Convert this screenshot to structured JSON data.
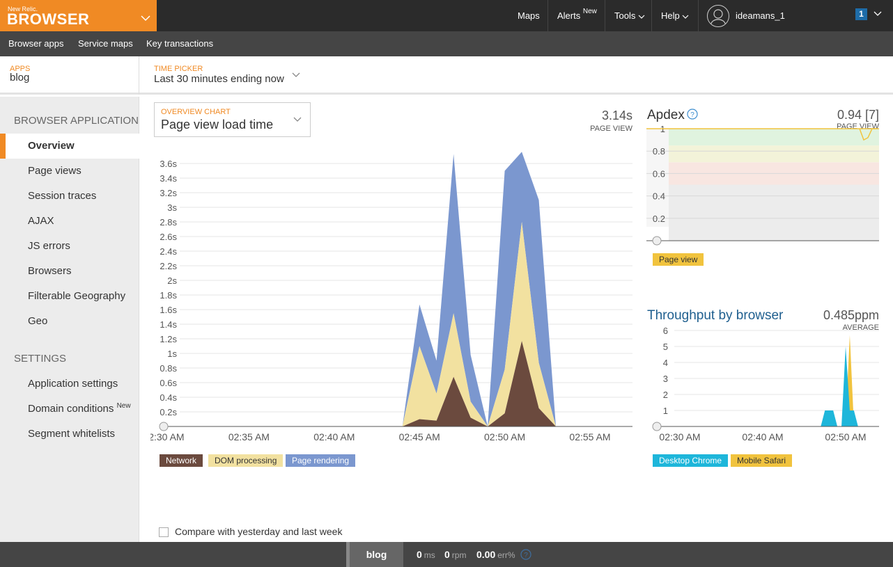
{
  "brand": {
    "small": "New Relic.",
    "name": "BROWSER"
  },
  "topnav": {
    "maps": "Maps",
    "alerts": "Alerts",
    "alerts_badge": "New",
    "tools": "Tools",
    "help": "Help",
    "username": "ideamans_1",
    "account_number": "1"
  },
  "subnav": [
    "Browser apps",
    "Service maps",
    "Key transactions"
  ],
  "context": {
    "apps_label": "APPS",
    "apps_value": "blog",
    "timepicker_label": "TIME PICKER",
    "timepicker_value": "Last 30 minutes ending now"
  },
  "sidebar": {
    "section1": "BROWSER APPLICATION",
    "items1": [
      "Overview",
      "Page views",
      "Session traces",
      "AJAX",
      "JS errors",
      "Browsers",
      "Filterable Geography",
      "Geo"
    ],
    "section2": "SETTINGS",
    "items2": [
      "Application settings",
      "Domain conditions",
      "Segment whitelists"
    ],
    "domain_badge": "New"
  },
  "overview": {
    "select_label": "OVERVIEW CHART",
    "select_value": "Page view load time",
    "stat_value": "3.14s",
    "stat_label": "PAGE VIEW"
  },
  "apdex": {
    "title": "Apdex",
    "stat_value": "0.94 [7]",
    "stat_label": "PAGE VIEW",
    "legend": "Page view"
  },
  "throughput": {
    "title": "Throughput by browser",
    "stat_value": "0.485ppm",
    "stat_label": "AVERAGE"
  },
  "compare_label": "Compare with yesterday and last week",
  "bottombar": {
    "app": "blog",
    "ms_value": "0",
    "ms_unit": "ms",
    "rpm_value": "0",
    "rpm_unit": "rpm",
    "err_value": "0.00",
    "err_unit": "err%"
  },
  "colors": {
    "brand": "#f08a24",
    "network": "#6b4a3e",
    "dom": "#f2e1a0",
    "render": "#7b97cf",
    "chrome": "#1eb6da",
    "safari": "#f1c33e"
  },
  "chart_data": [
    {
      "type": "area",
      "stacked": true,
      "x": [
        "02:44",
        "02:45",
        "02:46",
        "02:47",
        "02:48",
        "02:49",
        "02:50",
        "02:51",
        "02:52",
        "02:53"
      ],
      "series": [
        {
          "name": "Network",
          "values": [
            0,
            0.1,
            0.08,
            0.68,
            0.12,
            0,
            0.18,
            1.17,
            0.25,
            0
          ]
        },
        {
          "name": "DOM processing",
          "values": [
            0,
            1.0,
            0.37,
            0.87,
            0.22,
            0,
            0.6,
            1.63,
            0.62,
            0
          ]
        },
        {
          "name": "Page rendering",
          "values": [
            0,
            0.57,
            0.45,
            2.18,
            0.64,
            0,
            2.72,
            0.96,
            2.23,
            0
          ]
        }
      ],
      "x_ticks": [
        "02:30 AM",
        "02:35 AM",
        "02:40 AM",
        "02:45 AM",
        "02:50 AM",
        "02:55 AM"
      ],
      "y_ticks": [
        "0.2s",
        "0.4s",
        "0.6s",
        "0.8s",
        "1s",
        "1.2s",
        "1.4s",
        "1.6s",
        "1.8s",
        "2s",
        "2.2s",
        "2.4s",
        "2.6s",
        "2.8s",
        "3s",
        "3.2s",
        "3.4s",
        "3.6s"
      ],
      "ylim": [
        0,
        3.6
      ]
    },
    {
      "type": "line",
      "title": "Apdex",
      "series": [
        {
          "name": "Page view",
          "x": [
            "02:51:30",
            "02:52",
            "02:52:30",
            "02:53",
            "02:53:30"
          ],
          "values": [
            1,
            0.9,
            0.92,
            1,
            1
          ]
        }
      ],
      "y_ticks": [
        "0.2",
        "0.4",
        "0.6",
        "0.8",
        "1"
      ],
      "ylim": [
        0,
        1
      ]
    },
    {
      "type": "area",
      "title": "Throughput by browser",
      "x": [
        "02:47",
        "02:47:30",
        "02:48:30",
        "02:49",
        "02:49:30",
        "02:50",
        "02:50:30",
        "02:51",
        "02:51:30"
      ],
      "series": [
        {
          "name": "Desktop Chrome",
          "values": [
            0,
            1,
            1,
            0,
            0,
            5,
            1,
            1,
            0
          ]
        },
        {
          "name": "Mobile Safari",
          "values": [
            0,
            0,
            0,
            0,
            0,
            0.2,
            5.7,
            0.1,
            0
          ]
        }
      ],
      "x_ticks": [
        "02:30 AM",
        "02:40 AM",
        "02:50 AM"
      ],
      "y_ticks": [
        "1",
        "2",
        "3",
        "4",
        "5",
        "6"
      ],
      "ylim": [
        0,
        6
      ]
    }
  ]
}
